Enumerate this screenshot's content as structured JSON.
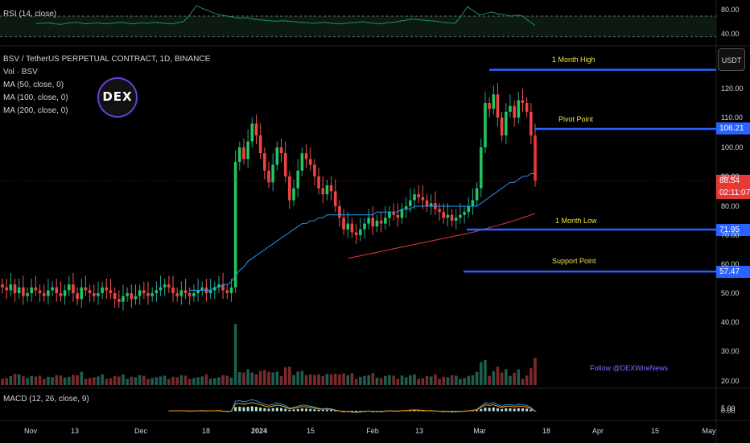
{
  "rsi": {
    "title": "RSI (14, close)",
    "ticks": [
      80.0,
      40.0
    ],
    "values": [
      56,
      56,
      57,
      55,
      54,
      56,
      58,
      57,
      55,
      56,
      57,
      55,
      56,
      57,
      58,
      56,
      55,
      57,
      56,
      58,
      57,
      56,
      55,
      57,
      60,
      74,
      90,
      85,
      80,
      75,
      72,
      70,
      68,
      66,
      67,
      65,
      63,
      62,
      61,
      60,
      61,
      60,
      59,
      58,
      57,
      56,
      57,
      58,
      56,
      55,
      56,
      57,
      58,
      59,
      57,
      56,
      55,
      57,
      58,
      60,
      62,
      64,
      63,
      62,
      61,
      60,
      58,
      57,
      56,
      70,
      88,
      80,
      72,
      75,
      78,
      74,
      73,
      70,
      72,
      70,
      60,
      52
    ]
  },
  "main": {
    "title": "BSV / TetherUS PERPETUAL CONTRACT, 1D, BINANCE",
    "legend": [
      "Vol · BSV",
      "MA (50, close, 0)",
      "MA (100, close, 0)",
      "MA (200, close, 0)"
    ],
    "y_ticks": [
      120.0,
      110.0,
      100.0,
      90.0,
      80.0,
      70.0,
      60.0,
      50.0,
      40.0,
      30.0,
      20.0
    ],
    "currency_button": "USDT",
    "levels": [
      {
        "label": "1 Month High",
        "value": 126.5,
        "tag": ""
      },
      {
        "label": "Pivot Point",
        "value": 106.21,
        "tag": "106.21"
      },
      {
        "label": "1 Month Low",
        "value": 71.95,
        "tag": "71.95"
      },
      {
        "label": "Support Point",
        "value": 57.47,
        "tag": "57.47"
      }
    ],
    "last_price": "88.54",
    "countdown": "02:11:07",
    "watermark": "Follow @DEXWireNews",
    "logo_text": "DEX"
  },
  "macd": {
    "title": "MACD (12, 26, close, 9)",
    "ticks": [
      5.0,
      0.0
    ]
  },
  "x_axis": [
    "Nov",
    "13",
    "Dec",
    "18",
    "2024",
    "15",
    "Feb",
    "13",
    "Mar",
    "18",
    "Apr",
    "15",
    "May"
  ],
  "chart_data": {
    "type": "candlestick",
    "title": "BSV / TetherUS PERPETUAL CONTRACT, 1D, BINANCE",
    "ylim": [
      18,
      132
    ],
    "close": [
      52,
      51,
      53,
      50,
      52,
      49,
      50,
      52,
      51,
      50,
      49,
      51,
      52,
      50,
      49,
      51,
      53,
      50,
      48,
      52,
      51,
      50,
      49,
      50,
      52,
      51,
      50,
      48,
      47,
      49,
      50,
      48,
      49,
      51,
      50,
      49,
      50,
      51,
      52,
      53,
      52,
      50,
      49,
      51,
      50,
      49,
      50,
      51,
      52,
      50,
      51,
      52,
      53,
      51,
      50,
      52,
      95,
      100,
      96,
      102,
      108,
      104,
      98,
      92,
      88,
      94,
      100,
      98,
      90,
      82,
      86,
      92,
      98,
      96,
      94,
      90,
      86,
      84,
      87,
      85,
      80,
      76,
      72,
      74,
      71,
      70,
      72,
      74,
      76,
      73,
      75,
      74,
      76,
      78,
      77,
      76,
      79,
      80,
      82,
      84,
      83,
      82,
      80,
      81,
      79,
      78,
      76,
      77,
      75,
      76,
      77,
      78,
      80,
      82,
      86,
      100,
      115,
      113,
      118,
      110,
      104,
      112,
      114,
      110,
      116,
      115,
      112,
      104,
      88.54
    ],
    "ma50": [
      null,
      null,
      null,
      null,
      null,
      null,
      null,
      null,
      null,
      null,
      null,
      null,
      null,
      null,
      null,
      null,
      null,
      null,
      null,
      null,
      null,
      null,
      null,
      null,
      null,
      null,
      null,
      null,
      null,
      null,
      null,
      null,
      null,
      null,
      null,
      null,
      null,
      null,
      null,
      null,
      null,
      null,
      null,
      null,
      null,
      51,
      51,
      51,
      51,
      51,
      51,
      52,
      52,
      53,
      53,
      54,
      56,
      58,
      59,
      61,
      62,
      63,
      64,
      65,
      66,
      67,
      68,
      69,
      70,
      71,
      72,
      73,
      74,
      74,
      75,
      75,
      76,
      76,
      77,
      77,
      77,
      77,
      77,
      77,
      77,
      77,
      77,
      77,
      77,
      77,
      78,
      78,
      78,
      78,
      78,
      78,
      79,
      79,
      79,
      80,
      80,
      80,
      80,
      80,
      80,
      80,
      80,
      80,
      80,
      80,
      80,
      80,
      80,
      80,
      80,
      81,
      82,
      83,
      84,
      85,
      86,
      87,
      88,
      88,
      89,
      90,
      90,
      91,
      91
    ],
    "ma200": [
      null,
      null,
      null,
      null,
      null,
      null,
      null,
      null,
      null,
      null,
      null,
      null,
      null,
      null,
      null,
      null,
      null,
      null,
      null,
      null,
      null,
      null,
      null,
      null,
      null,
      null,
      null,
      null,
      null,
      null,
      null,
      null,
      null,
      null,
      null,
      null,
      null,
      null,
      null,
      null,
      null,
      null,
      null,
      null,
      null,
      null,
      null,
      null,
      null,
      null,
      null,
      null,
      null,
      null,
      null,
      null,
      null,
      null,
      null,
      null,
      null,
      null,
      null,
      null,
      null,
      null,
      null,
      null,
      null,
      null,
      null,
      null,
      null,
      null,
      null,
      null,
      null,
      null,
      null,
      null,
      null,
      null,
      null,
      62,
      62.3,
      62.6,
      62.9,
      63.2,
      63.5,
      63.8,
      64.1,
      64.4,
      64.7,
      65,
      65.3,
      65.6,
      65.9,
      66.2,
      66.5,
      66.8,
      67.1,
      67.4,
      67.7,
      68,
      68.3,
      68.6,
      68.9,
      69.2,
      69.5,
      69.8,
      70.1,
      70.4,
      70.7,
      71,
      71.4,
      71.8,
      72.2,
      72.6,
      73,
      73.4,
      73.8,
      74.2,
      74.6,
      75,
      75.5,
      76,
      76.5,
      77,
      77.5
    ]
  }
}
